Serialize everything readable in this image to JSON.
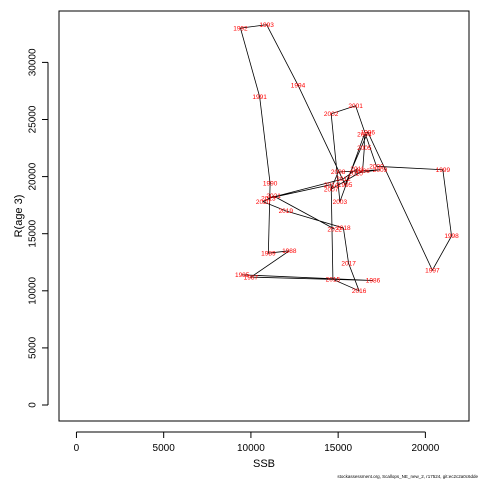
{
  "chart_data": {
    "type": "scatter",
    "xlabel": "SSB",
    "ylabel": "R(age 3)",
    "xlim": [
      -1000,
      22500
    ],
    "ylim": [
      -1400,
      34500
    ],
    "xticks": [
      0,
      5000,
      10000,
      15000,
      20000
    ],
    "yticks": [
      0,
      5000,
      10000,
      15000,
      20000,
      25000,
      30000
    ],
    "grid": false,
    "connect_points_in_order": true,
    "line_color": "#000000",
    "label_color": "#ff0000",
    "points": [
      {
        "year": "1985",
        "x": 9500,
        "y": 11400
      },
      {
        "year": "1986",
        "x": 17000,
        "y": 10900
      },
      {
        "year": "1987",
        "x": 10000,
        "y": 11200
      },
      {
        "year": "1988",
        "x": 12200,
        "y": 13500
      },
      {
        "year": "1989",
        "x": 11000,
        "y": 13300
      },
      {
        "year": "1990",
        "x": 11100,
        "y": 19400
      },
      {
        "year": "1991",
        "x": 10500,
        "y": 27000
      },
      {
        "year": "1992",
        "x": 9400,
        "y": 33000
      },
      {
        "year": "1993",
        "x": 10900,
        "y": 33300
      },
      {
        "year": "1994",
        "x": 12700,
        "y": 28000
      },
      {
        "year": "1995",
        "x": 15400,
        "y": 19300
      },
      {
        "year": "1996",
        "x": 16700,
        "y": 23900
      },
      {
        "year": "1997",
        "x": 20400,
        "y": 11800
      },
      {
        "year": "1998",
        "x": 21500,
        "y": 14800
      },
      {
        "year": "1999",
        "x": 21000,
        "y": 20600
      },
      {
        "year": "2000",
        "x": 17200,
        "y": 20900
      },
      {
        "year": "2001",
        "x": 16000,
        "y": 26200
      },
      {
        "year": "2002",
        "x": 14600,
        "y": 25500
      },
      {
        "year": "2003",
        "x": 15100,
        "y": 17800
      },
      {
        "year": "2004",
        "x": 16500,
        "y": 23700
      },
      {
        "year": "2005",
        "x": 16500,
        "y": 22500
      },
      {
        "year": "2006",
        "x": 16400,
        "y": 20500
      },
      {
        "year": "2007",
        "x": 14600,
        "y": 18900
      },
      {
        "year": "2008",
        "x": 15000,
        "y": 20400
      },
      {
        "year": "2009",
        "x": 17400,
        "y": 20600
      },
      {
        "year": "2010",
        "x": 16000,
        "y": 20300
      },
      {
        "year": "2011",
        "x": 16100,
        "y": 20700
      },
      {
        "year": "2012",
        "x": 15300,
        "y": 19800
      },
      {
        "year": "2013",
        "x": 11000,
        "y": 18100
      },
      {
        "year": "2014",
        "x": 14600,
        "y": 19300
      },
      {
        "year": "2015",
        "x": 14700,
        "y": 11000
      },
      {
        "year": "2016",
        "x": 16200,
        "y": 10000
      },
      {
        "year": "2017",
        "x": 15600,
        "y": 12400
      },
      {
        "year": "2018",
        "x": 15300,
        "y": 15500
      },
      {
        "year": "2019",
        "x": 12000,
        "y": 17000
      },
      {
        "year": "2020",
        "x": 10700,
        "y": 17800
      },
      {
        "year": "2021",
        "x": 11300,
        "y": 18300
      },
      {
        "year": "2022",
        "x": 14800,
        "y": 15400
      }
    ]
  },
  "footer": "stockassessment.org, Scallops_NE_new_2, r17524, git:ec2c2a0c6dde"
}
